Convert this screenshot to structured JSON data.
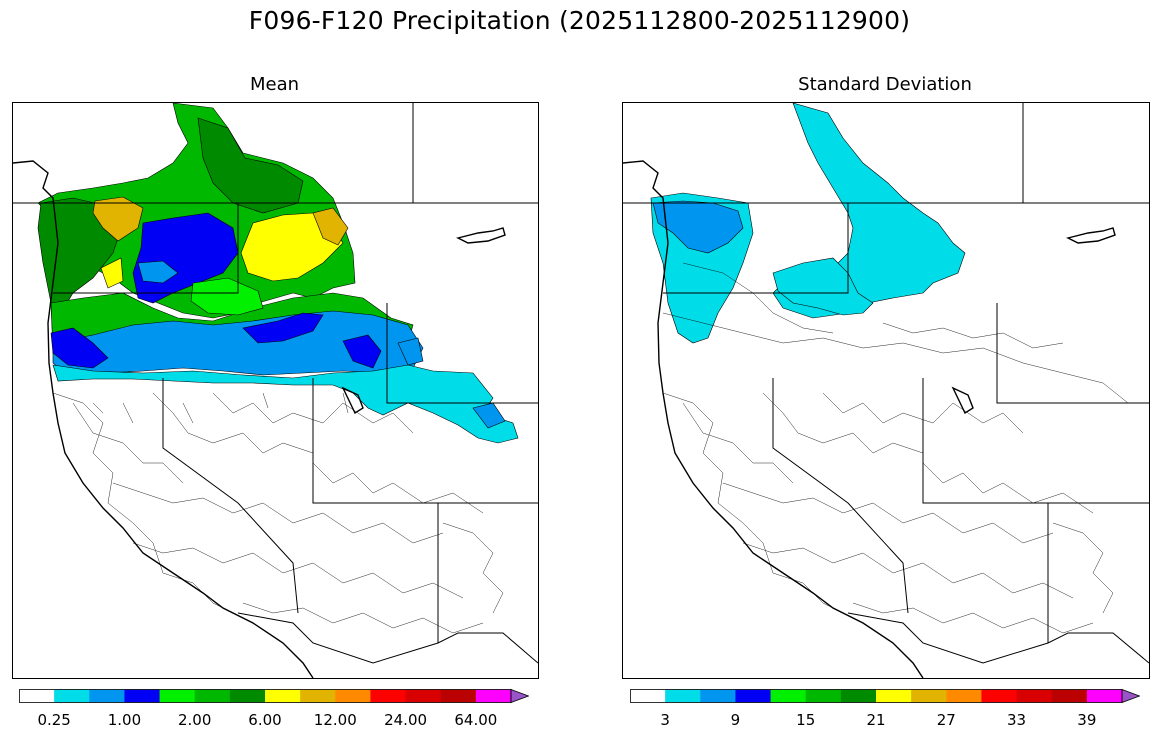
{
  "figure": {
    "title": "F096-F120 Precipitation (2025112800-2025112900)"
  },
  "panels": [
    {
      "id": "mean",
      "title": "Mean",
      "colorbar": {
        "colors": [
          "#ffffff",
          "#00dde8",
          "#0096f0",
          "#0000f5",
          "#00f000",
          "#00b800",
          "#008a00",
          "#ffff00",
          "#e0b400",
          "#ff8a00",
          "#ff0000",
          "#d80000",
          "#bb0000",
          "#ff00ff",
          "#9955c8"
        ],
        "tick_labels": [
          "0.25",
          "1.00",
          "2.00",
          "6.00",
          "12.00",
          "24.00",
          "64.00"
        ],
        "tick_boundaries": [
          1,
          3,
          5,
          7,
          9,
          11,
          13
        ],
        "extend": "max"
      }
    },
    {
      "id": "std",
      "title": "Standard Deviation",
      "colorbar": {
        "colors": [
          "#ffffff",
          "#00dde8",
          "#0096f0",
          "#0000f5",
          "#00f000",
          "#00b800",
          "#008a00",
          "#ffff00",
          "#e0b400",
          "#ff8a00",
          "#ff0000",
          "#d80000",
          "#bb0000",
          "#ff00ff",
          "#9955c8"
        ],
        "tick_labels": [
          "3",
          "9",
          "15",
          "21",
          "27",
          "33",
          "39"
        ],
        "tick_boundaries": [
          1,
          3,
          5,
          7,
          9,
          11,
          13
        ],
        "extend": "max"
      }
    }
  ],
  "map_regions": {
    "mean": [
      {
        "area": "Northern Idaho / W Montana / interior BC",
        "color": "#00b800"
      },
      {
        "area": "BC Columbia headwaters",
        "color": "#008a00"
      },
      {
        "area": "NW Washington coast",
        "color": "#008a00"
      },
      {
        "area": "Western Oregon",
        "color": "#00b800"
      },
      {
        "area": "Olympic / N Cascades highlands",
        "color": "#e0b400"
      },
      {
        "area": "Central Washington band",
        "color": "#0000f5"
      },
      {
        "area": "NE Washington / Idaho panhandle",
        "color": "#ffff00"
      },
      {
        "area": "Southern Oregon / Snake River band",
        "color": "#0096f0"
      },
      {
        "area": "SE Idaho / N Utah / W Wyoming",
        "color": "#00dde8"
      }
    ],
    "std": [
      {
        "area": "BC Columbia headwaters",
        "color": "#00dde8"
      },
      {
        "area": "Washington / Oregon coast",
        "color": "#00dde8"
      },
      {
        "area": "Puget Sound",
        "color": "#0096f0"
      },
      {
        "area": "Idaho / W Montana",
        "color": "#00dde8"
      }
    ]
  }
}
